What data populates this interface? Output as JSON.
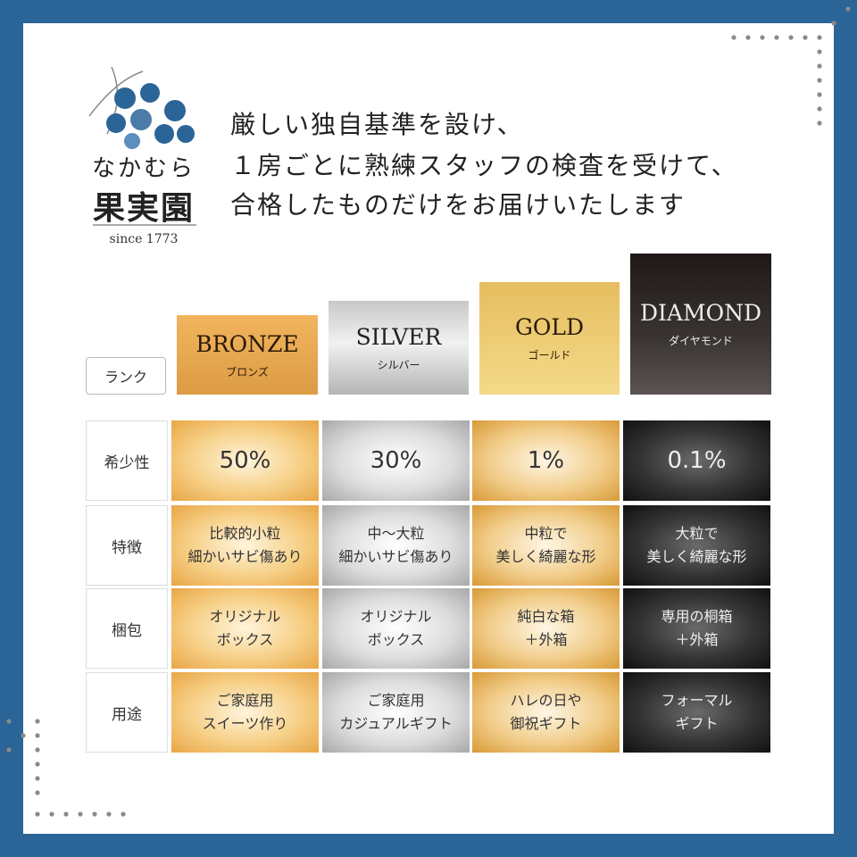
{
  "logo": {
    "name_kana": "なかむら",
    "name_kanji": "果実園",
    "since": "since 1773"
  },
  "headline": [
    "厳しい独自基準を設け、",
    "１房ごとに熟練スタッフの検査を受けて、",
    "合格したものだけをお届けいたします"
  ],
  "table": {
    "header_label": "ランク",
    "ranks": [
      {
        "name": "BRONZE",
        "kana": "ブロンズ"
      },
      {
        "name": "SILVER",
        "kana": "シルバー"
      },
      {
        "name": "GOLD",
        "kana": "ゴールド"
      },
      {
        "name": "DIAMOND",
        "kana": "ダイヤモンド"
      }
    ],
    "rows": [
      {
        "label": "希少性",
        "cells": [
          [
            "50%"
          ],
          [
            "30%"
          ],
          [
            "1%"
          ],
          [
            "0.1%"
          ]
        ]
      },
      {
        "label": "特徴",
        "cells": [
          [
            "比較的小粒",
            "細かいサビ傷あり"
          ],
          [
            "中～大粒",
            "細かいサビ傷あり"
          ],
          [
            "中粒で",
            "美しく綺麗な形"
          ],
          [
            "大粒で",
            "美しく綺麗な形"
          ]
        ]
      },
      {
        "label": "梱包",
        "cells": [
          [
            "オリジナル",
            "ボックス"
          ],
          [
            "オリジナル",
            "ボックス"
          ],
          [
            "純白な箱",
            "＋外箱"
          ],
          [
            "専用の桐箱",
            "＋外箱"
          ]
        ]
      },
      {
        "label": "用途",
        "cells": [
          [
            "ご家庭用",
            "スイーツ作り"
          ],
          [
            "ご家庭用",
            "カジュアルギフト"
          ],
          [
            "ハレの日や",
            "御祝ギフト"
          ],
          [
            "フォーマル",
            "ギフト"
          ]
        ]
      }
    ]
  }
}
